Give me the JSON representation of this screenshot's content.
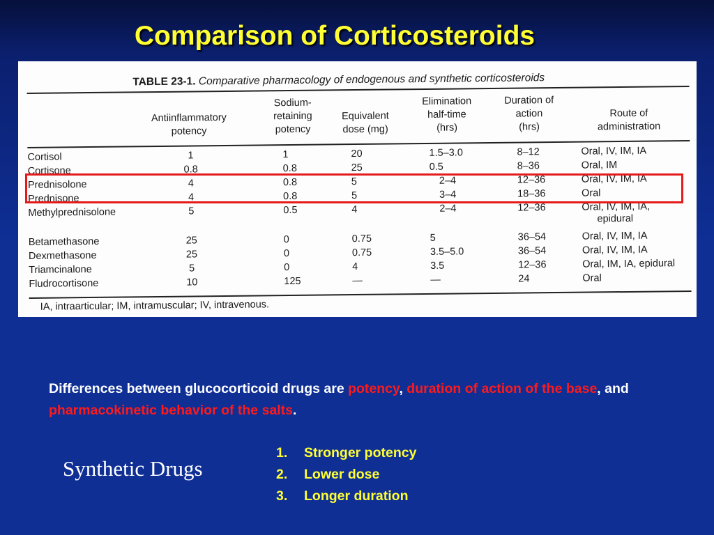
{
  "slide": {
    "title": "Comparison of Corticosteroids"
  },
  "table": {
    "label": "TABLE 23-1.",
    "caption": "Comparative pharmacology of endogenous and synthetic corticosteroids",
    "headers": {
      "antiinflammatory": "Antiinflammatory\npotency",
      "sodium": "Sodium-\nretaining\npotency",
      "equivalent": "Equivalent\ndose (mg)",
      "elimination": "Elimination\nhalf-time\n(hrs)",
      "duration": "Duration of\naction\n(hrs)",
      "route": "Route of\nadministration"
    },
    "rows": [
      {
        "drug": "Cortisol",
        "anti": "1",
        "sodium": "1",
        "dose": "20",
        "half": "1.5–3.0",
        "duration": "8–12",
        "route": "Oral, IV, IM, IA"
      },
      {
        "drug": "Cortisone",
        "anti": "0.8",
        "sodium": "0.8",
        "dose": "25",
        "half": "0.5",
        "duration": "8–36",
        "route": "Oral, IM"
      },
      {
        "drug": "Prednisolone",
        "anti": "4",
        "sodium": "0.8",
        "dose": "5",
        "half": "2–4",
        "duration": "12–36",
        "route": "Oral, IV, IM, IA"
      },
      {
        "drug": "Prednisone",
        "anti": "4",
        "sodium": "0.8",
        "dose": "5",
        "half": "3–4",
        "duration": "18–36",
        "route": "Oral"
      },
      {
        "drug": "Methylprednisolone",
        "anti": "5",
        "sodium": "0.5",
        "dose": "4",
        "half": "2–4",
        "duration": "12–36",
        "route": "Oral, IV, IM, IA,",
        "route2": "epidural"
      },
      {
        "drug": "Betamethasone",
        "anti": "25",
        "sodium": "0",
        "dose": "0.75",
        "half": "5",
        "duration": "36–54",
        "route": "Oral, IV, IM, IA"
      },
      {
        "drug": "Dexmethasone",
        "anti": "25",
        "sodium": "0",
        "dose": "0.75",
        "half": "3.5–5.0",
        "duration": "36–54",
        "route": "Oral, IV, IM, IA"
      },
      {
        "drug": "Triamcinalone",
        "anti": "5",
        "sodium": "0",
        "dose": "4",
        "half": "3.5",
        "duration": "12–36",
        "route": "Oral, IM, IA, epidural"
      },
      {
        "drug": "Fludrocortisone",
        "anti": "10",
        "sodium": "125",
        "dose": "—",
        "half": "—",
        "duration": "24",
        "route": "Oral"
      }
    ],
    "footnote": "IA, intraarticular; IM, intramuscular; IV, intravenous."
  },
  "explanation": {
    "intro": "Differences between glucocorticoid drugs are ",
    "term1": "potency",
    "sep1": ", ",
    "term2": "duration of action of the base",
    "sep2": ", and ",
    "term3": "pharmacokinetic behavior of the salts",
    "end": "."
  },
  "synthetic": {
    "label": "Synthetic Drugs",
    "items": [
      {
        "num": "1.",
        "text": "Stronger potency"
      },
      {
        "num": "2.",
        "text": "Lower dose"
      },
      {
        "num": "3.",
        "text": "Longer duration"
      }
    ]
  },
  "colors": {
    "background": "#0f2f95",
    "title": "#ffff33",
    "highlight": "#ff1a1a",
    "highlight_box": "#e41b1b"
  }
}
